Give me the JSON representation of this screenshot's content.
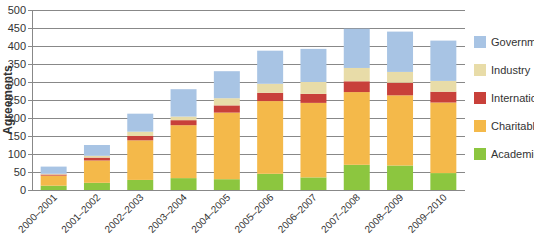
{
  "chart_data": {
    "type": "bar",
    "stacked": true,
    "grid": true,
    "legend": "right",
    "y_label": "Agreements",
    "categories": [
      "2000–2001",
      "2001–2002",
      "2002–2003",
      "2003–2004",
      "2004–2005",
      "2005–2006",
      "2006–2007",
      "2007–2008",
      "2008–2009",
      "2009–2010"
    ],
    "series": [
      {
        "name": "Academic",
        "color": "#8cc63f",
        "values": [
          12,
          20,
          28,
          33,
          30,
          45,
          35,
          70,
          68,
          47
        ]
      },
      {
        "name": "Charitable",
        "color": "#f4b94a",
        "values": [
          28,
          62,
          110,
          147,
          185,
          202,
          207,
          202,
          195,
          196
        ]
      },
      {
        "name": "International",
        "color": "#c8403a",
        "values": [
          3,
          8,
          12,
          14,
          20,
          23,
          25,
          30,
          35,
          30
        ]
      },
      {
        "name": "Industry",
        "color": "#e8dca8",
        "values": [
          2,
          5,
          12,
          10,
          20,
          25,
          33,
          37,
          30,
          30
        ]
      },
      {
        "name": "Governments",
        "color": "#a8c4e4",
        "values": [
          20,
          30,
          50,
          76,
          75,
          92,
          92,
          109,
          112,
          112
        ]
      }
    ],
    "ylim": [
      0,
      500
    ],
    "yticks": [
      0,
      50,
      100,
      150,
      200,
      250,
      300,
      350,
      400,
      450,
      500
    ]
  }
}
